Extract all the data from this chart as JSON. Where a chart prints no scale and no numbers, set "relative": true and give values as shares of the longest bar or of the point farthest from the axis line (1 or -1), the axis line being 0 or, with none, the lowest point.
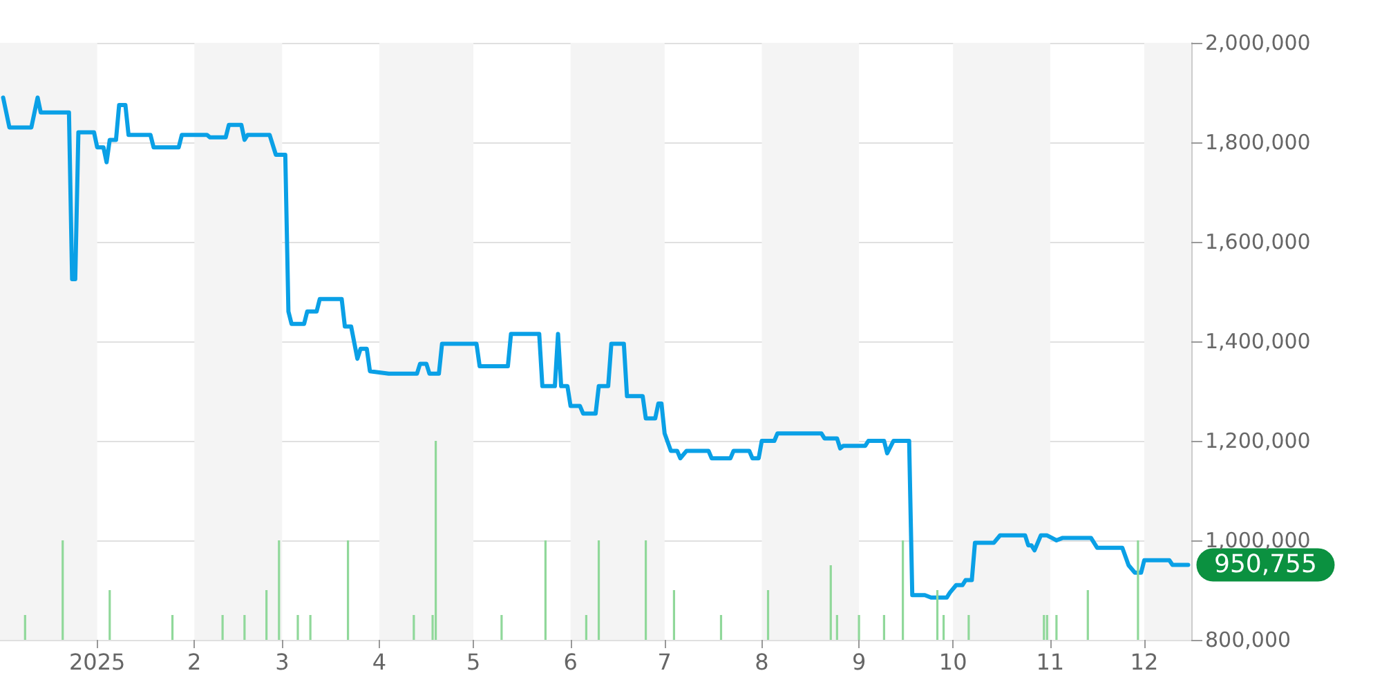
{
  "chart_data": [
    {
      "type": "line",
      "x": [
        "2024-12-02",
        "2024-12-04",
        "2024-12-11",
        "2024-12-13",
        "2024-12-14",
        "2024-12-23",
        "2024-12-24",
        "2024-12-25",
        "2024-12-26",
        "2024-12-31",
        "2025-01-01",
        "2025-01-03",
        "2025-01-04",
        "2025-01-05",
        "2025-01-07",
        "2025-01-08",
        "2025-01-10",
        "2025-01-11",
        "2025-01-18",
        "2025-01-19",
        "2025-01-27",
        "2025-01-28",
        "2025-02-05",
        "2025-02-06",
        "2025-02-11",
        "2025-02-12",
        "2025-02-16",
        "2025-02-17",
        "2025-02-18",
        "2025-02-25",
        "2025-02-27",
        "2025-03-02",
        "2025-03-03",
        "2025-03-04",
        "2025-03-08",
        "2025-03-09",
        "2025-03-12",
        "2025-03-13",
        "2025-03-20",
        "2025-03-21",
        "2025-03-23",
        "2025-03-25",
        "2025-03-26",
        "2025-03-28",
        "2025-03-29",
        "2025-04-04",
        "2025-04-13",
        "2025-04-14",
        "2025-04-16",
        "2025-04-17",
        "2025-04-20",
        "2025-04-21",
        "2025-05-02",
        "2025-05-03",
        "2025-05-12",
        "2025-05-13",
        "2025-05-22",
        "2025-05-23",
        "2025-05-27",
        "2025-05-28",
        "2025-05-29",
        "2025-05-31",
        "2025-06-01",
        "2025-06-04",
        "2025-06-05",
        "2025-06-09",
        "2025-06-10",
        "2025-06-13",
        "2025-06-14",
        "2025-06-18",
        "2025-06-19",
        "2025-06-24",
        "2025-06-25",
        "2025-06-28",
        "2025-06-29",
        "2025-06-30",
        "2025-07-01",
        "2025-07-03",
        "2025-07-05",
        "2025-07-06",
        "2025-07-08",
        "2025-07-15",
        "2025-07-16",
        "2025-07-22",
        "2025-07-23",
        "2025-07-28",
        "2025-07-29",
        "2025-07-31",
        "2025-08-01",
        "2025-08-05",
        "2025-08-06",
        "2025-08-20",
        "2025-08-21",
        "2025-08-25",
        "2025-08-26",
        "2025-08-27",
        "2025-09-03",
        "2025-09-04",
        "2025-09-09",
        "2025-09-10",
        "2025-09-12",
        "2025-09-17",
        "2025-09-18",
        "2025-09-22",
        "2025-09-24",
        "2025-09-29",
        "2025-09-30",
        "2025-10-02",
        "2025-10-04",
        "2025-10-05",
        "2025-10-07",
        "2025-10-08",
        "2025-10-14",
        "2025-10-16",
        "2025-10-24",
        "2025-10-25",
        "2025-10-26",
        "2025-10-27",
        "2025-10-29",
        "2025-10-31",
        "2025-11-03",
        "2025-11-05",
        "2025-11-14",
        "2025-11-16",
        "2025-11-24",
        "2025-11-26",
        "2025-11-28",
        "2025-11-30",
        "2025-12-01",
        "2025-12-09",
        "2025-12-10",
        "2025-12-15"
      ],
      "series": [
        {
          "color": "#0aa0e6",
          "values": [
            1890000,
            1830000,
            1830000,
            1890000,
            1860000,
            1860000,
            1525000,
            1525000,
            1820000,
            1820000,
            1790000,
            1790000,
            1760000,
            1805000,
            1805000,
            1875000,
            1875000,
            1815000,
            1815000,
            1790000,
            1790000,
            1815000,
            1815000,
            1810000,
            1810000,
            1835000,
            1835000,
            1805000,
            1815000,
            1815000,
            1775000,
            1775000,
            1460000,
            1435000,
            1435000,
            1460000,
            1460000,
            1485000,
            1485000,
            1430000,
            1430000,
            1365000,
            1385000,
            1385000,
            1340000,
            1335000,
            1335000,
            1355000,
            1355000,
            1335000,
            1335000,
            1395000,
            1395000,
            1350000,
            1350000,
            1415000,
            1415000,
            1310000,
            1310000,
            1415000,
            1310000,
            1310000,
            1270000,
            1270000,
            1255000,
            1255000,
            1310000,
            1310000,
            1395000,
            1395000,
            1290000,
            1290000,
            1245000,
            1245000,
            1275000,
            1275000,
            1215000,
            1180000,
            1180000,
            1165000,
            1180000,
            1180000,
            1165000,
            1165000,
            1180000,
            1180000,
            1165000,
            1165000,
            1200000,
            1200000,
            1215000,
            1215000,
            1205000,
            1205000,
            1185000,
            1190000,
            1190000,
            1200000,
            1200000,
            1175000,
            1200000,
            1200000,
            890000,
            890000,
            885000,
            885000,
            895000,
            910000,
            910000,
            920000,
            920000,
            995000,
            995000,
            1010000,
            1010000,
            990000,
            990000,
            980000,
            1010000,
            1010000,
            1000000,
            1005000,
            1005000,
            985000,
            985000,
            950000,
            935000,
            935000,
            960000,
            960000,
            950755,
            950755
          ]
        }
      ],
      "xlim": [
        "2024-12-01",
        "2025-12-16"
      ],
      "xticks": [
        {
          "value": "2025-01-01",
          "label": "2025"
        },
        {
          "value": "2025-02-01",
          "label": "2"
        },
        {
          "value": "2025-03-01",
          "label": "3"
        },
        {
          "value": "2025-04-01",
          "label": "4"
        },
        {
          "value": "2025-05-01",
          "label": "5"
        },
        {
          "value": "2025-06-01",
          "label": "6"
        },
        {
          "value": "2025-07-01",
          "label": "7"
        },
        {
          "value": "2025-08-01",
          "label": "8"
        },
        {
          "value": "2025-09-01",
          "label": "9"
        },
        {
          "value": "2025-10-01",
          "label": "10"
        },
        {
          "value": "2025-11-01",
          "label": "11"
        },
        {
          "value": "2025-12-01",
          "label": "12"
        }
      ],
      "ylim": [
        800000,
        2000000
      ],
      "yticks": [
        {
          "value": 800000,
          "label": "800,000"
        },
        {
          "value": 1000000,
          "label": "1,000,000"
        },
        {
          "value": 1200000,
          "label": "1,200,000"
        },
        {
          "value": 1400000,
          "label": "1,400,000"
        },
        {
          "value": 1600000,
          "label": "1,600,000"
        },
        {
          "value": 1800000,
          "label": "1,800,000"
        },
        {
          "value": 2000000,
          "label": "2,000,000"
        }
      ],
      "grid": "y",
      "marker": "none",
      "line_style": "solid",
      "bands": [
        {
          "axis": "x",
          "from": "2024-12-01",
          "to": "2025-01-01",
          "color": "#f4f4f4"
        },
        {
          "axis": "x",
          "from": "2025-02-01",
          "to": "2025-03-01",
          "color": "#f4f4f4"
        },
        {
          "axis": "x",
          "from": "2025-04-01",
          "to": "2025-05-01",
          "color": "#f4f4f4"
        },
        {
          "axis": "x",
          "from": "2025-06-01",
          "to": "2025-07-01",
          "color": "#f4f4f4"
        },
        {
          "axis": "x",
          "from": "2025-08-01",
          "to": "2025-09-01",
          "color": "#f4f4f4"
        },
        {
          "axis": "x",
          "from": "2025-10-01",
          "to": "2025-11-01",
          "color": "#f4f4f4"
        },
        {
          "axis": "x",
          "from": "2025-12-01",
          "to": "2025-12-16",
          "color": "#f4f4f4"
        }
      ],
      "annotations": [
        {
          "text": "950,755",
          "x": "2025-12-15",
          "y": 950755
        }
      ]
    },
    {
      "type": "bar",
      "relative": true,
      "xlim": [
        "2024-12-01",
        "2025-12-16"
      ],
      "x": [
        "2024-12-09",
        "2024-12-21",
        "2025-01-05",
        "2025-01-25",
        "2025-02-10",
        "2025-02-17",
        "2025-02-24",
        "2025-02-28",
        "2025-03-06",
        "2025-03-10",
        "2025-03-22",
        "2025-04-12",
        "2025-04-18",
        "2025-04-19",
        "2025-05-10",
        "2025-05-24",
        "2025-06-06",
        "2025-06-10",
        "2025-06-25",
        "2025-07-04",
        "2025-07-19",
        "2025-08-03",
        "2025-08-23",
        "2025-08-25",
        "2025-09-01",
        "2025-09-09",
        "2025-09-15",
        "2025-09-26",
        "2025-09-28",
        "2025-10-06",
        "2025-10-30",
        "2025-10-31",
        "2025-11-03",
        "2025-11-13",
        "2025-11-29"
      ],
      "series": [
        {
          "color": "#90d89a",
          "values": [
            0.125,
            0.5,
            0.25,
            0.125,
            0.125,
            0.125,
            0.25,
            0.5,
            0.125,
            0.125,
            0.5,
            0.125,
            0.125,
            1,
            0.125,
            0.5,
            0.125,
            0.5,
            0.5,
            0.25,
            0.125,
            0.25,
            0.375,
            0.125,
            0.125,
            0.125,
            0.5,
            0.25,
            0.125,
            0.125,
            0.125,
            0.125,
            0.125,
            0.25,
            0.5
          ]
        }
      ]
    }
  ]
}
